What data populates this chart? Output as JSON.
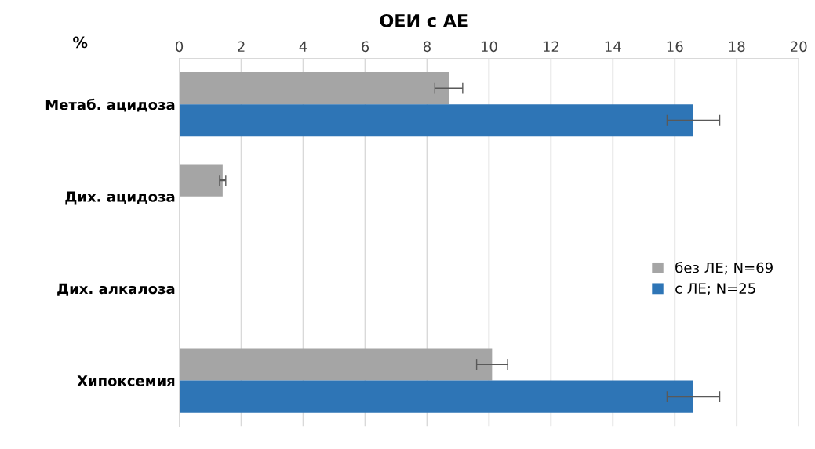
{
  "chart_data": {
    "type": "bar",
    "orientation": "horizontal",
    "title": "ОЕИ с АЕ",
    "ylabel": "%",
    "categories": [
      "Метаб. ацидоза",
      "Дих. ацидоза",
      "Дих. алкалоза",
      "Хипоксемия"
    ],
    "series": [
      {
        "name": "без ЛЕ; N=69",
        "color": "#a5a5a5",
        "values": [
          8.7,
          1.4,
          null,
          10.1
        ],
        "errors": [
          0.45,
          0.1,
          null,
          0.5
        ]
      },
      {
        "name": "с ЛЕ; N=25",
        "color": "#2e75b6",
        "values": [
          16.6,
          null,
          null,
          16.6
        ],
        "errors": [
          0.85,
          null,
          null,
          0.85
        ]
      }
    ],
    "xlim": [
      0,
      20
    ],
    "xticks": [
      0,
      2,
      4,
      6,
      8,
      10,
      12,
      14,
      16,
      18,
      20
    ],
    "grid": "x",
    "legend": "right"
  }
}
